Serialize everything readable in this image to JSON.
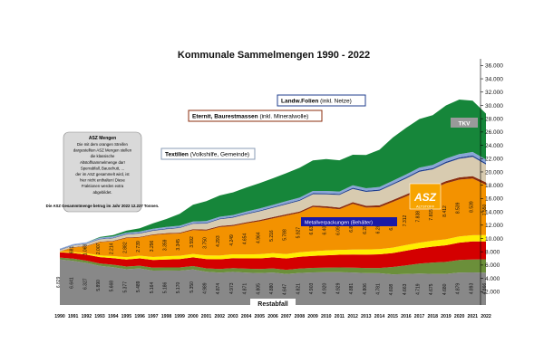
{
  "chart_data": {
    "type": "area",
    "title": "Kommunale Sammelmengen 1990 - 2022",
    "xlabel": "",
    "ylabel": "",
    "x": [
      "1990",
      "1991",
      "1992",
      "1993",
      "1994",
      "1995",
      "1996",
      "1997",
      "1998",
      "1999",
      "2000",
      "2001",
      "2002",
      "2003",
      "2004",
      "2005",
      "2006",
      "2007",
      "2008",
      "2009",
      "2010",
      "2011",
      "2012",
      "2013",
      "2014",
      "2015",
      "2016",
      "2017",
      "2018",
      "2019",
      "2020",
      "2021",
      "2022"
    ],
    "ylim": [
      0,
      37000
    ],
    "yticks": [
      "2.000",
      "4.000",
      "6.000",
      "8.000",
      "10.000",
      "12.000",
      "14.000",
      "16.000",
      "18.000",
      "20.000",
      "22.000",
      "24.000",
      "26.000",
      "28.000",
      "30.000",
      "32.000",
      "34.000",
      "36.000"
    ],
    "ytick_values": [
      2000,
      4000,
      6000,
      8000,
      10000,
      12000,
      14000,
      16000,
      18000,
      20000,
      22000,
      24000,
      26000,
      28000,
      30000,
      32000,
      34000,
      36000
    ],
    "restabfall_labels": [
      "6.829",
      "6.641",
      "6.327",
      "5.890",
      "5.668",
      "5.377",
      "5.489",
      "5.164",
      "5.186",
      "5.170",
      "5.350",
      "4.989",
      "4.874",
      "4.973",
      "4.871",
      "4.805",
      "4.880",
      "4.647",
      "4.821",
      "4.903",
      "4.920",
      "4.929",
      "4.881",
      "4.806",
      "4.781",
      "4.608",
      "4.663",
      "4.719",
      "4.675",
      "4.680",
      "4.879",
      "4.893",
      "4.866"
    ],
    "metall_labels": [
      "681",
      "1.068",
      "2.007",
      "2.214",
      "2.882",
      "2.739",
      "3.296",
      "3.359",
      "3.345",
      "3.592",
      "3.750",
      "4.293",
      "4.249",
      "4.654",
      "4.964",
      "5.216",
      "5.788",
      "5.927",
      "6.636",
      "6.407",
      "6.098",
      "6.866",
      "6.289",
      "6.283",
      "6.868",
      "7.312",
      "7.838",
      "7.815",
      "8.412",
      "8.539",
      "8.539",
      "7.550"
    ],
    "series": [
      {
        "name": "Restabfall",
        "color": "#888888",
        "values": [
          6829,
          6641,
          6327,
          5890,
          5668,
          5377,
          5489,
          5164,
          5186,
          5170,
          5350,
          4989,
          4874,
          4973,
          4871,
          4805,
          4880,
          4647,
          4821,
          4903,
          4920,
          4929,
          4881,
          4806,
          4781,
          4608,
          4663,
          4719,
          4675,
          4680,
          4879,
          4893,
          4866
        ]
      },
      {
        "name": "",
        "color": "#6b8f3a",
        "values": [
          300,
          320,
          340,
          360,
          380,
          400,
          420,
          440,
          460,
          480,
          500,
          520,
          540,
          560,
          580,
          600,
          620,
          640,
          660,
          680,
          700,
          720,
          740,
          760,
          780,
          1100,
          1300,
          1500,
          1700,
          1800,
          1900,
          1950,
          2000
        ]
      },
      {
        "name": "",
        "color": "#d40000",
        "values": [
          800,
          850,
          900,
          950,
          1000,
          1050,
          1100,
          1150,
          1200,
          1250,
          1300,
          1400,
          1450,
          1500,
          1550,
          1600,
          1650,
          1700,
          1750,
          1800,
          1850,
          1900,
          1950,
          2000,
          2050,
          2100,
          2200,
          2300,
          2400,
          2500,
          2600,
          2700,
          2700
        ]
      },
      {
        "name": "Metallverpackungen (Behälter)",
        "color": "#ffee00",
        "values": [
          100,
          150,
          200,
          250,
          300,
          350,
          400,
          450,
          480,
          500,
          520,
          540,
          560,
          580,
          600,
          620,
          640,
          660,
          680,
          700,
          720,
          740,
          760,
          780,
          800,
          820,
          840,
          860,
          880,
          900,
          920,
          940,
          950
        ]
      },
      {
        "name": "ASZ",
        "color": "#f39200",
        "values": [
          0,
          681,
          1068,
          2007,
          2214,
          2882,
          2739,
          3296,
          3359,
          3345,
          3592,
          3750,
          4293,
          4249,
          4654,
          4964,
          5216,
          5788,
          5927,
          6636,
          6407,
          6098,
          6866,
          6289,
          6283,
          6868,
          7312,
          7838,
          7815,
          8412,
          8539,
          8539,
          7550
        ]
      },
      {
        "name": "Textilien",
        "color": "#8b2d0e",
        "values": [
          40,
          50,
          60,
          70,
          80,
          90,
          100,
          110,
          120,
          130,
          140,
          150,
          160,
          170,
          180,
          190,
          200,
          210,
          220,
          230,
          240,
          250,
          260,
          270,
          280,
          290,
          300,
          310,
          320,
          330,
          340,
          350,
          360
        ]
      },
      {
        "name": "Eternit, Baurestmassen",
        "color": "#d8cbb0",
        "values": [
          200,
          250,
          300,
          350,
          400,
          450,
          500,
          550,
          600,
          700,
          800,
          900,
          1000,
          1100,
          1200,
          1300,
          1400,
          1500,
          1600,
          1700,
          1800,
          1900,
          2000,
          2100,
          2200,
          2300,
          2400,
          2500,
          2600,
          2700,
          2800,
          2900,
          2700
        ]
      },
      {
        "name": "Landw.Folien",
        "color": "#1f3e8c",
        "values": [
          50,
          55,
          60,
          65,
          70,
          75,
          80,
          85,
          90,
          95,
          100,
          105,
          110,
          115,
          120,
          125,
          130,
          135,
          140,
          145,
          150,
          155,
          160,
          165,
          170,
          175,
          180,
          185,
          190,
          195,
          200,
          205,
          210
        ]
      },
      {
        "name": "TKV",
        "color": "#8aa6d6",
        "values": [
          150,
          160,
          170,
          180,
          190,
          200,
          210,
          220,
          230,
          240,
          250,
          260,
          270,
          280,
          290,
          300,
          310,
          320,
          330,
          340,
          350,
          360,
          370,
          380,
          390,
          400,
          420,
          440,
          460,
          480,
          500,
          520,
          540
        ]
      },
      {
        "name": "",
        "color": "#16863a",
        "values": [
          0,
          0,
          0,
          100,
          200,
          300,
          500,
          800,
          1200,
          1800,
          2500,
          3000,
          3200,
          3400,
          3600,
          3800,
          4000,
          4200,
          4500,
          4600,
          4800,
          4700,
          4600,
          5000,
          5600,
          6500,
          7000,
          7300,
          7500,
          8000,
          8200,
          7700,
          6900
        ]
      }
    ],
    "annotations": [
      {
        "text": "Landw.Folien",
        "suffix": "(inkl. Netze)"
      },
      {
        "text": "Eternit, Baurestmassen",
        "suffix": "(inkl. Mineralwolle)"
      },
      {
        "text": "Textilien",
        "suffix": "(Volkshilfe, Gemeinde)"
      },
      {
        "text": "Metallverpackungen (Behälter)"
      },
      {
        "text": "TKV"
      },
      {
        "text": "Restabfall"
      }
    ],
    "note": {
      "heading": "ASZ Mengen",
      "lines": [
        "Die mit dem orangen Streifen",
        "dargestellten ASZ Mengen stellen",
        "die klassische",
        "Altstoffsammelmenge dar!",
        "Sperrabfall, Bauschutt, ...",
        "der im ASZ gesammelt wird, ist",
        "hier nicht enthalten! Diese",
        "Fraktionen werden extra",
        "abgebildet."
      ],
      "total": "Die ASZ Gesammtmenge betrug im Jahr 2022 12.227 Tonnen."
    },
    "logo": {
      "text": "ASZ",
      "sub": "ALTSTOFF"
    }
  }
}
